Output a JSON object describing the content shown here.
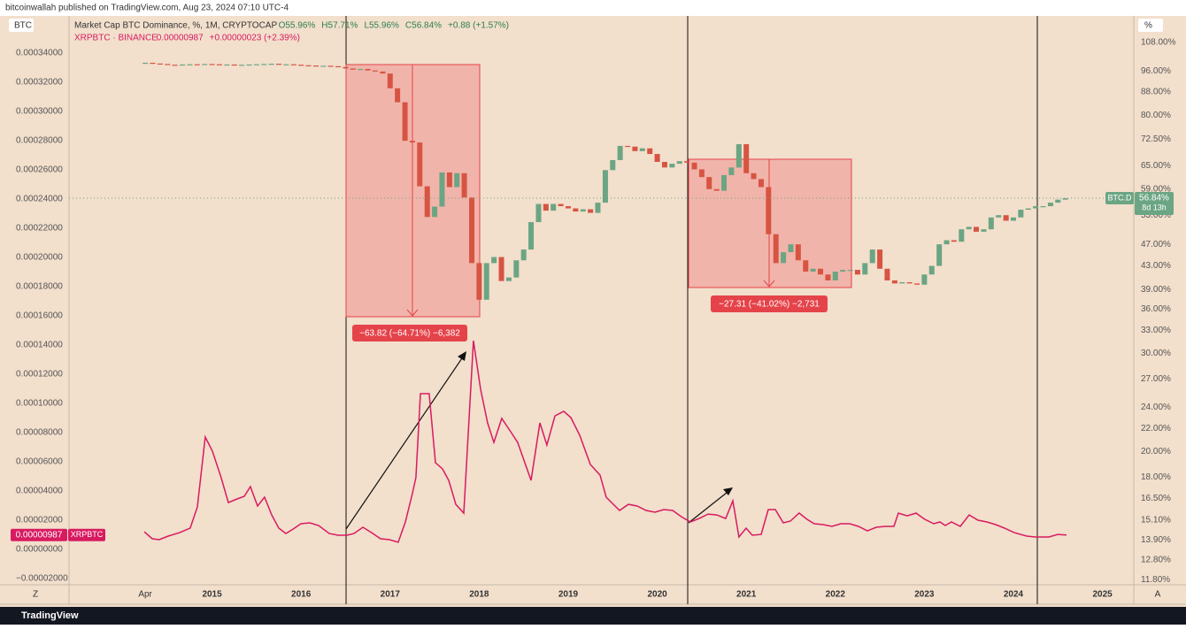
{
  "header": "bitcoinwallah published on TradingView.com, Aug 23, 2024 07:10 UTC-4",
  "brand": "TradingView",
  "chart_data": {
    "type": "candlestick",
    "axis_labels": {
      "left": "BTC",
      "right": "%",
      "bottom_left": "Z",
      "bottom_right": "A"
    },
    "xlim": [
      2013.394,
      2025.342
    ],
    "xticks": [
      {
        "value": 2014.25,
        "label": "Apr"
      },
      {
        "value": 2015,
        "label": "2015"
      },
      {
        "value": 2016,
        "label": "2016"
      },
      {
        "value": 2017,
        "label": "2017"
      },
      {
        "value": 2018,
        "label": "2018"
      },
      {
        "value": 2019,
        "label": "2019"
      },
      {
        "value": 2020,
        "label": "2020"
      },
      {
        "value": 2021,
        "label": "2021"
      },
      {
        "value": 2022,
        "label": "2022"
      },
      {
        "value": 2023,
        "label": "2023"
      },
      {
        "value": 2024,
        "label": "2024"
      },
      {
        "value": 2025,
        "label": "2025"
      }
    ],
    "ylim": [
      -2.36e-05,
      0.000363
    ],
    "yticks": [
      {
        "value": 0.00034,
        "label": "0.00034000"
      },
      {
        "value": 0.00032,
        "label": "0.00032000"
      },
      {
        "value": 0.0003,
        "label": "0.00030000"
      },
      {
        "value": 0.00028,
        "label": "0.00028000"
      },
      {
        "value": 0.00026,
        "label": "0.00026000"
      },
      {
        "value": 0.00024,
        "label": "0.00024000"
      },
      {
        "value": 0.00022,
        "label": "0.00022000"
      },
      {
        "value": 0.0002,
        "label": "0.00020000"
      },
      {
        "value": 0.00018,
        "label": "0.00018000"
      },
      {
        "value": 0.00016,
        "label": "0.00016000"
      },
      {
        "value": 0.00014,
        "label": "0.00014000"
      },
      {
        "value": 0.00012,
        "label": "0.00012000"
      },
      {
        "value": 0.0001,
        "label": "0.00010000"
      },
      {
        "value": 8e-05,
        "label": "0.00008000"
      },
      {
        "value": 6e-05,
        "label": "0.00006000"
      },
      {
        "value": 4e-05,
        "label": "0.00004000"
      },
      {
        "value": 2e-05,
        "label": "0.00002000"
      },
      {
        "value": 0,
        "label": "0.00000000"
      },
      {
        "value": -2e-05,
        "label": "−0.00002000"
      }
    ],
    "y2lim": [
      11.6,
      118.7
    ],
    "y2scale": "log",
    "y2ticks": [
      {
        "value": 108,
        "label": "108.00%"
      },
      {
        "value": 96,
        "label": "96.00%"
      },
      {
        "value": 88,
        "label": "88.00%"
      },
      {
        "value": 80,
        "label": "80.00%"
      },
      {
        "value": 72.5,
        "label": "72.50%"
      },
      {
        "value": 65,
        "label": "65.00%"
      },
      {
        "value": 59,
        "label": "59.00%"
      },
      {
        "value": 53,
        "label": "53.00%"
      },
      {
        "value": 47,
        "label": "47.00%"
      },
      {
        "value": 43,
        "label": "43.00%"
      },
      {
        "value": 39,
        "label": "39.00%"
      },
      {
        "value": 36,
        "label": "36.00%"
      },
      {
        "value": 33,
        "label": "33.00%"
      },
      {
        "value": 30,
        "label": "30.00%"
      },
      {
        "value": 27,
        "label": "27.00%"
      },
      {
        "value": 24,
        "label": "24.00%"
      },
      {
        "value": 22,
        "label": "22.00%"
      },
      {
        "value": 20,
        "label": "20.00%"
      },
      {
        "value": 18,
        "label": "18.00%"
      },
      {
        "value": 16.5,
        "label": "16.50%"
      },
      {
        "value": 15.1,
        "label": "15.10%"
      },
      {
        "value": 13.9,
        "label": "13.90%"
      },
      {
        "value": 12.8,
        "label": "12.80%"
      },
      {
        "value": 11.8,
        "label": "11.80%"
      }
    ],
    "series": [
      {
        "name": "Market Cap BTC Dominance, %, 1M, CRYPTOCAP",
        "type": "candlestick",
        "axis": "y2",
        "up_color": "#6ba583",
        "down_color": "#d75442",
        "stats": [
          "O55.96%",
          "H57.71%",
          "L55.96%",
          "C56.84%",
          "+0.88 (+1.57%)"
        ],
        "short_name": "BTC.D",
        "last_label": "56.84%",
        "countdown": "8d 13h",
        "x": [
          2014.25,
          2014.333,
          2014.417,
          2014.5,
          2014.583,
          2014.667,
          2014.75,
          2014.833,
          2014.917,
          2015,
          2015.083,
          2015.167,
          2015.25,
          2015.333,
          2015.417,
          2015.5,
          2015.583,
          2015.667,
          2015.75,
          2015.833,
          2015.917,
          2016,
          2016.083,
          2016.167,
          2016.25,
          2016.333,
          2016.417,
          2016.5,
          2016.583,
          2016.667,
          2016.75,
          2016.833,
          2016.917,
          2017,
          2017.083,
          2017.167,
          2017.25,
          2017.333,
          2017.417,
          2017.5,
          2017.583,
          2017.667,
          2017.75,
          2017.833,
          2017.917,
          2018,
          2018.083,
          2018.167,
          2018.25,
          2018.333,
          2018.417,
          2018.5,
          2018.583,
          2018.667,
          2018.75,
          2018.833,
          2018.917,
          2019,
          2019.083,
          2019.167,
          2019.25,
          2019.333,
          2019.417,
          2019.5,
          2019.583,
          2019.667,
          2019.75,
          2019.833,
          2019.917,
          2020,
          2020.083,
          2020.167,
          2020.25,
          2020.333,
          2020.417,
          2020.5,
          2020.583,
          2020.667,
          2020.75,
          2020.833,
          2020.917,
          2021,
          2021.083,
          2021.167,
          2021.25,
          2021.333,
          2021.417,
          2021.5,
          2021.583,
          2021.667,
          2021.75,
          2021.833,
          2021.917,
          2022,
          2022.083,
          2022.167,
          2022.25,
          2022.333,
          2022.417,
          2022.5,
          2022.583,
          2022.667,
          2022.75,
          2022.833,
          2022.917,
          2023,
          2023.083,
          2023.167,
          2023.25,
          2023.333,
          2023.417,
          2023.5,
          2023.583,
          2023.667,
          2023.75,
          2023.833,
          2023.917,
          2024,
          2024.083,
          2024.167,
          2024.25,
          2024.333,
          2024.417,
          2024.5,
          2024.583
        ],
        "values": [
          99.3,
          99.0,
          98.8,
          98.5,
          98.3,
          98.6,
          98.7,
          98.5,
          98.8,
          98.7,
          98.5,
          98.6,
          98.4,
          98.5,
          98.6,
          98.7,
          98.8,
          98.9,
          98.6,
          98.7,
          98.5,
          98.3,
          98.2,
          98.0,
          98.1,
          97.9,
          97.6,
          97.0,
          96.5,
          96.8,
          96.2,
          95.8,
          95.0,
          89.4,
          84.4,
          72.0,
          71.5,
          59.7,
          52.6,
          54.9,
          63.2,
          59.5,
          63.0,
          57.0,
          43.5,
          37.4,
          43.5,
          44.6,
          40.4,
          41.0,
          44.0,
          46.0,
          51.5,
          55.5,
          54.0,
          55.5,
          55.0,
          54.5,
          53.8,
          54.3,
          53.5,
          55.8,
          63.8,
          66.5,
          70.5,
          70.3,
          69.0,
          69.8,
          68.2,
          66.0,
          64.5,
          65.5,
          66.2,
          65.8,
          64.0,
          62.0,
          59.0,
          58.6,
          62.5,
          64.5,
          71.0,
          63.0,
          61.5,
          59.5,
          49.0,
          43.5,
          45.5,
          47.0,
          44.0,
          42.0,
          42.5,
          41.5,
          40.5,
          42.0,
          42.3,
          42.3,
          41.5,
          43.5,
          46.0,
          42.5,
          40.5,
          40.0,
          40.2,
          40.0,
          39.8,
          41.5,
          43.0,
          47.0,
          47.8,
          47.5,
          50.0,
          50.5,
          49.5,
          50.0,
          52.5,
          53.0,
          51.8,
          52.5,
          54.2,
          54.5,
          55.0,
          55.0,
          55.8,
          56.5,
          56.84
        ]
      },
      {
        "name": "XRPBTC · BINANCE",
        "type": "line",
        "color": "#d81b60",
        "stats": [
          "0.00000987",
          "+0.00000023 (+2.39%)"
        ],
        "short_name": "XRPBTC",
        "last_label": "0.00000987",
        "x": [
          2014.239,
          2014.328,
          2014.408,
          2014.507,
          2014.636,
          2014.755,
          2014.835,
          2014.924,
          2015.004,
          2015.103,
          2015.183,
          2015.282,
          2015.362,
          2015.431,
          2015.511,
          2015.59,
          2015.67,
          2015.75,
          2015.829,
          2015.909,
          2015.998,
          2016.097,
          2016.197,
          2016.316,
          2016.416,
          2016.515,
          2016.594,
          2016.694,
          2016.793,
          2016.893,
          2016.992,
          2017.091,
          2017.171,
          2017.25,
          2017.29,
          2017.34,
          2017.439,
          2017.509,
          2017.588,
          2017.658,
          2017.738,
          2017.827,
          2017.936,
          2018.016,
          2018.095,
          2018.165,
          2018.254,
          2018.354,
          2018.433,
          2018.583,
          2018.682,
          2018.761,
          2018.851,
          2018.95,
          2019.03,
          2019.129,
          2019.249,
          2019.358,
          2019.427,
          2019.577,
          2019.676,
          2019.775,
          2019.875,
          2019.974,
          2020.074,
          2020.173,
          2020.272,
          2020.372,
          2020.471,
          2020.571,
          2020.67,
          2020.769,
          2020.849,
          2020.918,
          2020.998,
          2021.068,
          2021.167,
          2021.247,
          2021.326,
          2021.416,
          2021.495,
          2021.594,
          2021.684,
          2021.763,
          2021.863,
          2021.962,
          2022.062,
          2022.161,
          2022.26,
          2022.36,
          2022.459,
          2022.559,
          2022.658,
          2022.708,
          2022.807,
          2022.907,
          2023.006,
          2023.105,
          2023.175,
          2023.235,
          2023.304,
          2023.404,
          2023.503,
          2023.602,
          2023.702,
          2023.801,
          2023.901,
          2024.01,
          2024.149,
          2024.249,
          2024.398,
          2024.497,
          2024.596
        ],
        "values": [
          1.21e-05,
          7.3e-06,
          6.7e-06,
          9.1e-06,
          1.15e-05,
          1.46e-05,
          2.91e-05,
          7.7e-05,
          6.73e-05,
          4.91e-05,
          3.21e-05,
          3.46e-05,
          3.64e-05,
          4.3e-05,
          2.97e-05,
          3.58e-05,
          2.36e-05,
          1.46e-05,
          1.09e-05,
          1.39e-05,
          1.76e-05,
          1.82e-05,
          1.64e-05,
          1.09e-05,
          9.7e-06,
          9.7e-06,
          1.09e-05,
          1.52e-05,
          1.15e-05,
          7.3e-06,
          6.7e-06,
          4.9e-06,
          1.88e-05,
          3.82e-05,
          4.91e-05,
          0.0001067,
          0.0001067,
          5.94e-05,
          5.52e-05,
          4.73e-05,
          3.09e-05,
          2.49e-05,
          0.000143,
          0.0001097,
          8.67e-05,
          7.33e-05,
          8.97e-05,
          8.06e-05,
          7.33e-05,
          4.73e-05,
          8.67e-05,
          7.15e-05,
          9.15e-05,
          9.46e-05,
          9.03e-05,
          7.82e-05,
          5.82e-05,
          5.09e-05,
          3.58e-05,
          2.67e-05,
          3.09e-05,
          2.97e-05,
          2.67e-05,
          2.55e-05,
          2.73e-05,
          2.67e-05,
          2.24e-05,
          1.88e-05,
          2.12e-05,
          2.42e-05,
          2.36e-05,
          2.12e-05,
          3.33e-05,
          8.5e-06,
          1.46e-05,
          9.7e-06,
          1.03e-05,
          2.73e-05,
          2.73e-05,
          1.82e-05,
          1.94e-05,
          2.49e-05,
          2.06e-05,
          1.76e-05,
          1.7e-05,
          1.58e-05,
          1.76e-05,
          1.76e-05,
          1.58e-05,
          1.27e-05,
          1.52e-05,
          1.58e-05,
          1.58e-05,
          2.49e-05,
          2.3e-05,
          2.49e-05,
          2.06e-05,
          1.76e-05,
          1.88e-05,
          1.64e-05,
          1.88e-05,
          1.58e-05,
          2.36e-05,
          2e-05,
          1.88e-05,
          1.7e-05,
          1.46e-05,
          1.15e-05,
          9.1e-06,
          8.5e-06,
          8.5e-06,
          1.03e-05,
          9.87e-06
        ]
      }
    ],
    "annotations": [
      "−63.82 (−64.71%) −6,382",
      "−27.31 (−41.02%) −2,731"
    ]
  }
}
